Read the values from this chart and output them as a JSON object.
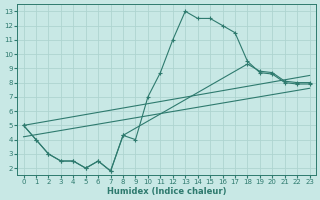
{
  "bg_color": "#c8e8e5",
  "grid_color": "#aed4d0",
  "line_color": "#2e7a6e",
  "xlabel": "Humidex (Indice chaleur)",
  "xlim": [
    -0.5,
    23.5
  ],
  "ylim": [
    1.5,
    13.5
  ],
  "xticks": [
    0,
    1,
    2,
    3,
    4,
    5,
    6,
    7,
    8,
    9,
    10,
    11,
    12,
    13,
    14,
    15,
    16,
    17,
    18,
    19,
    20,
    21,
    22,
    23
  ],
  "yticks": [
    2,
    3,
    4,
    5,
    6,
    7,
    8,
    9,
    10,
    11,
    12,
    13
  ],
  "curve1_x": [
    0,
    1,
    2,
    3,
    4,
    5,
    6,
    7,
    8,
    9,
    10,
    11,
    12,
    13,
    14,
    15,
    16,
    17,
    18,
    19,
    20,
    21,
    22,
    23
  ],
  "curve1_y": [
    5,
    4,
    3,
    2.5,
    2.5,
    2.0,
    2.5,
    1.8,
    4.3,
    4.0,
    7.0,
    8.7,
    11.0,
    13.0,
    12.5,
    12.5,
    12.0,
    11.5,
    9.5,
    8.7,
    8.6,
    8.0,
    7.9,
    7.9
  ],
  "curve2_x": [
    0,
    1,
    2,
    3,
    4,
    5,
    6,
    7,
    8,
    18,
    19,
    20,
    21,
    22,
    23
  ],
  "curve2_y": [
    5,
    4,
    3,
    2.5,
    2.5,
    2.0,
    2.5,
    1.8,
    4.3,
    9.3,
    8.8,
    8.7,
    8.1,
    8.0,
    8.0
  ],
  "line1_x": [
    0,
    23
  ],
  "line1_y": [
    5.0,
    8.5
  ],
  "line2_x": [
    0,
    23
  ],
  "line2_y": [
    4.2,
    7.6
  ]
}
